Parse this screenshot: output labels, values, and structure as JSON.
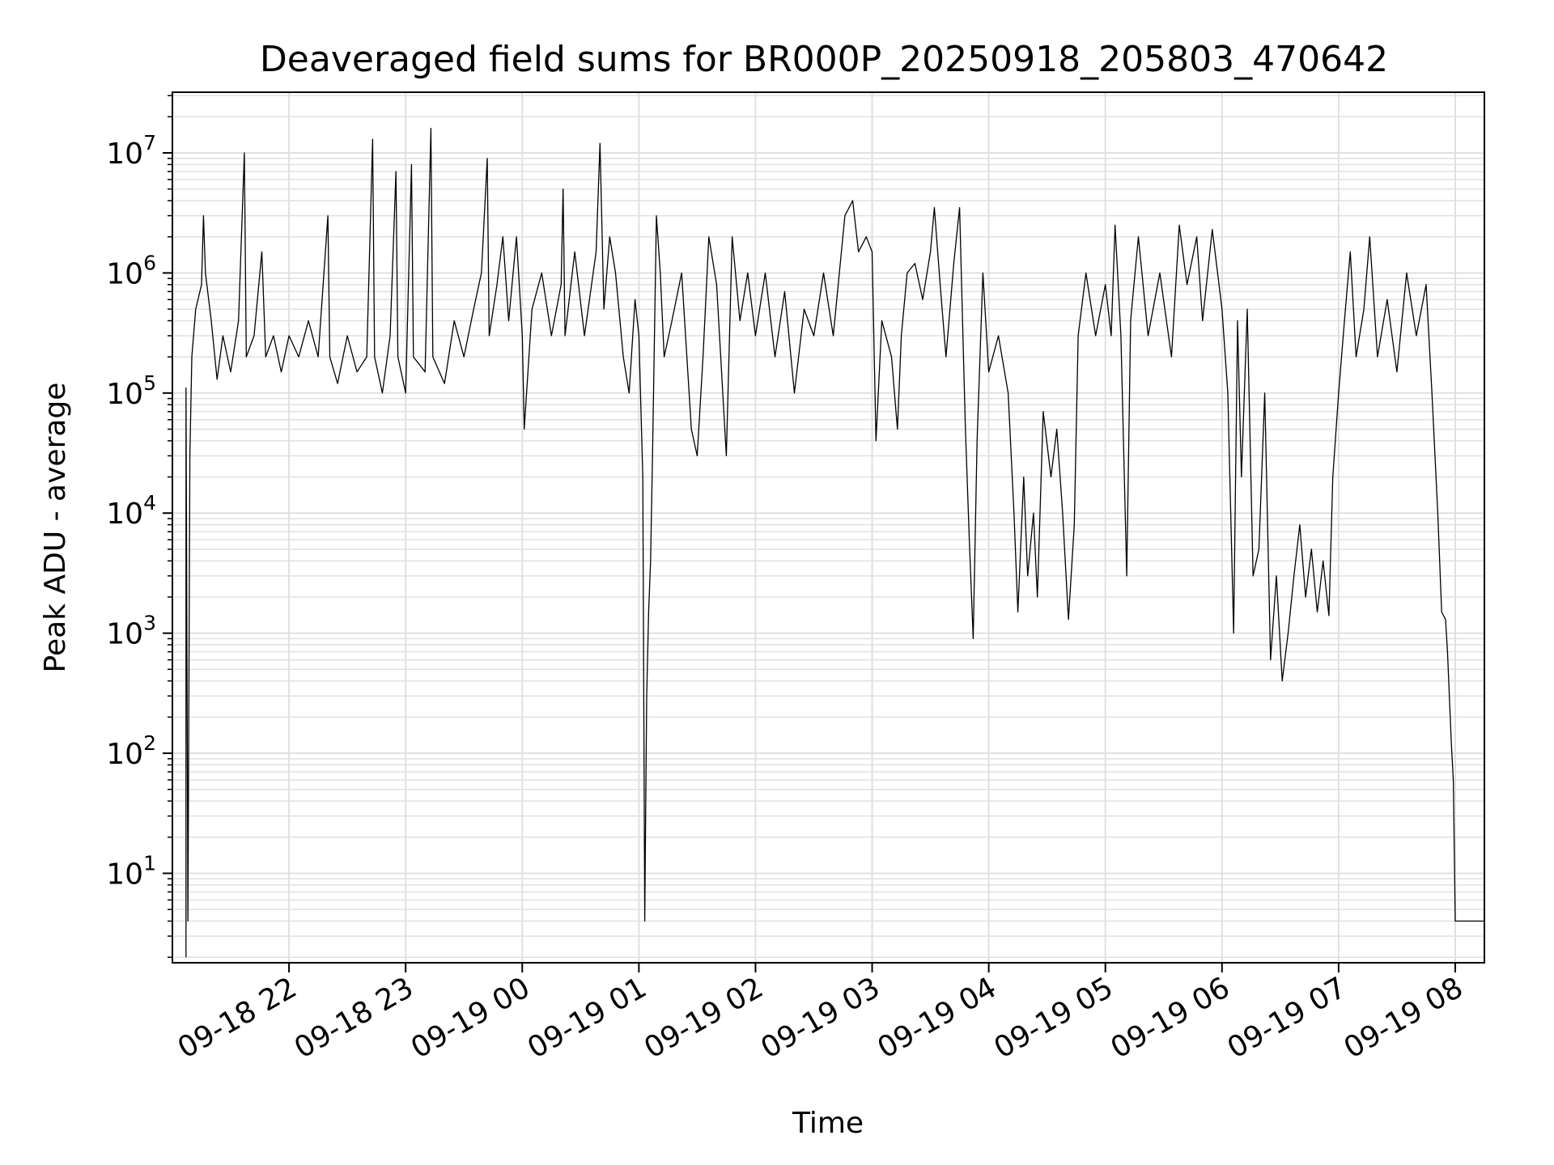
{
  "chart_data": {
    "type": "line",
    "title": "Deaveraged field sums for BR000P_20250918_205803_470642",
    "xlabel": "Time",
    "ylabel": "Peak ADU - average",
    "yscale": "log",
    "ylim": [
      1.8,
      32000000.0
    ],
    "xlim": [
      "2025-09-18 21:00",
      "2025-09-19 08:15"
    ],
    "grid": true,
    "line_color": "#000000",
    "grid_color": "#e0e0e0",
    "x_ticks": [
      {
        "label": "09-18 22",
        "t": "2025-09-18 22:00"
      },
      {
        "label": "09-18 23",
        "t": "2025-09-18 23:00"
      },
      {
        "label": "09-19 00",
        "t": "2025-09-19 00:00"
      },
      {
        "label": "09-19 01",
        "t": "2025-09-19 01:00"
      },
      {
        "label": "09-19 02",
        "t": "2025-09-19 02:00"
      },
      {
        "label": "09-19 03",
        "t": "2025-09-19 03:00"
      },
      {
        "label": "09-19 04",
        "t": "2025-09-19 04:00"
      },
      {
        "label": "09-19 05",
        "t": "2025-09-19 05:00"
      },
      {
        "label": "09-19 06",
        "t": "2025-09-19 06:00"
      },
      {
        "label": "09-19 07",
        "t": "2025-09-19 07:00"
      },
      {
        "label": "09-19 08",
        "t": "2025-09-19 08:00"
      }
    ],
    "y_ticks": [
      {
        "base": "10",
        "exp": "1",
        "value": 10
      },
      {
        "base": "10",
        "exp": "2",
        "value": 100
      },
      {
        "base": "10",
        "exp": "3",
        "value": 1000
      },
      {
        "base": "10",
        "exp": "4",
        "value": 10000
      },
      {
        "base": "10",
        "exp": "5",
        "value": 100000
      },
      {
        "base": "10",
        "exp": "6",
        "value": 1000000
      },
      {
        "base": "10",
        "exp": "7",
        "value": 10000000
      }
    ],
    "series": [
      {
        "points": [
          [
            "2025-09-18 21:07",
            2
          ],
          [
            "2025-09-18 21:07",
            110000.0
          ],
          [
            "2025-09-18 21:08",
            4
          ],
          [
            "2025-09-18 21:09",
            30000.0
          ],
          [
            "2025-09-18 21:10",
            200000.0
          ],
          [
            "2025-09-18 21:12",
            500000.0
          ],
          [
            "2025-09-18 21:15",
            800000.0
          ],
          [
            "2025-09-18 21:16",
            3000000.0
          ],
          [
            "2025-09-18 21:17",
            1000000.0
          ],
          [
            "2025-09-18 21:20",
            400000.0
          ],
          [
            "2025-09-18 21:23",
            130000.0
          ],
          [
            "2025-09-18 21:26",
            300000.0
          ],
          [
            "2025-09-18 21:30",
            150000.0
          ],
          [
            "2025-09-18 21:34",
            400000.0
          ],
          [
            "2025-09-18 21:37",
            10000000.0
          ],
          [
            "2025-09-18 21:38",
            200000.0
          ],
          [
            "2025-09-18 21:42",
            300000.0
          ],
          [
            "2025-09-18 21:46",
            1500000.0
          ],
          [
            "2025-09-18 21:48",
            200000.0
          ],
          [
            "2025-09-18 21:52",
            300000.0
          ],
          [
            "2025-09-18 21:56",
            150000.0
          ],
          [
            "2025-09-18 22:00",
            300000.0
          ],
          [
            "2025-09-18 22:05",
            200000.0
          ],
          [
            "2025-09-18 22:10",
            400000.0
          ],
          [
            "2025-09-18 22:15",
            200000.0
          ],
          [
            "2025-09-18 22:20",
            3000000.0
          ],
          [
            "2025-09-18 22:21",
            200000.0
          ],
          [
            "2025-09-18 22:25",
            120000.0
          ],
          [
            "2025-09-18 22:30",
            300000.0
          ],
          [
            "2025-09-18 22:35",
            150000.0
          ],
          [
            "2025-09-18 22:40",
            200000.0
          ],
          [
            "2025-09-18 22:43",
            13000000.0
          ],
          [
            "2025-09-18 22:44",
            200000.0
          ],
          [
            "2025-09-18 22:48",
            100000.0
          ],
          [
            "2025-09-18 22:52",
            300000.0
          ],
          [
            "2025-09-18 22:55",
            7000000.0
          ],
          [
            "2025-09-18 22:56",
            200000.0
          ],
          [
            "2025-09-18 23:00",
            100000.0
          ],
          [
            "2025-09-18 23:03",
            8000000.0
          ],
          [
            "2025-09-18 23:04",
            200000.0
          ],
          [
            "2025-09-18 23:10",
            150000.0
          ],
          [
            "2025-09-18 23:13",
            16000000.0
          ],
          [
            "2025-09-18 23:14",
            200000.0
          ],
          [
            "2025-09-18 23:20",
            120000.0
          ],
          [
            "2025-09-18 23:25",
            400000.0
          ],
          [
            "2025-09-18 23:30",
            200000.0
          ],
          [
            "2025-09-18 23:35",
            500000.0
          ],
          [
            "2025-09-18 23:39",
            1000000.0
          ],
          [
            "2025-09-18 23:42",
            9000000.0
          ],
          [
            "2025-09-18 23:43",
            300000.0
          ],
          [
            "2025-09-18 23:47",
            800000.0
          ],
          [
            "2025-09-18 23:50",
            2000000.0
          ],
          [
            "2025-09-18 23:53",
            400000.0
          ],
          [
            "2025-09-18 23:57",
            2000000.0
          ],
          [
            "2025-09-19 00:00",
            300000.0
          ],
          [
            "2025-09-19 00:01",
            50000.0
          ],
          [
            "2025-09-19 00:05",
            500000.0
          ],
          [
            "2025-09-19 00:10",
            1000000.0
          ],
          [
            "2025-09-19 00:15",
            300000.0
          ],
          [
            "2025-09-19 00:20",
            800000.0
          ],
          [
            "2025-09-19 00:21",
            5000000.0
          ],
          [
            "2025-09-19 00:22",
            300000.0
          ],
          [
            "2025-09-19 00:27",
            1500000.0
          ],
          [
            "2025-09-19 00:32",
            300000.0
          ],
          [
            "2025-09-19 00:38",
            1500000.0
          ],
          [
            "2025-09-19 00:40",
            12000000.0
          ],
          [
            "2025-09-19 00:42",
            500000.0
          ],
          [
            "2025-09-19 00:45",
            2000000.0
          ],
          [
            "2025-09-19 00:48",
            1000000.0
          ],
          [
            "2025-09-19 00:52",
            200000.0
          ],
          [
            "2025-09-19 00:55",
            100000.0
          ],
          [
            "2025-09-19 00:58",
            600000.0
          ],
          [
            "2025-09-19 01:00",
            300000.0
          ],
          [
            "2025-09-19 01:02",
            20000.0
          ],
          [
            "2025-09-19 01:03",
            4
          ],
          [
            "2025-09-19 01:04",
            300
          ],
          [
            "2025-09-19 01:05",
            1500
          ],
          [
            "2025-09-19 01:06",
            4000
          ],
          [
            "2025-09-19 01:07",
            30000.0
          ],
          [
            "2025-09-19 01:09",
            3000000.0
          ],
          [
            "2025-09-19 01:11",
            1000000.0
          ],
          [
            "2025-09-19 01:13",
            200000.0
          ],
          [
            "2025-09-19 01:17",
            400000.0
          ],
          [
            "2025-09-19 01:22",
            1000000.0
          ],
          [
            "2025-09-19 01:27",
            50000.0
          ],
          [
            "2025-09-19 01:30",
            30000.0
          ],
          [
            "2025-09-19 01:33",
            200000.0
          ],
          [
            "2025-09-19 01:36",
            2000000.0
          ],
          [
            "2025-09-19 01:40",
            800000.0
          ],
          [
            "2025-09-19 01:45",
            30000.0
          ],
          [
            "2025-09-19 01:48",
            2000000.0
          ],
          [
            "2025-09-19 01:52",
            400000.0
          ],
          [
            "2025-09-19 01:56",
            1000000.0
          ],
          [
            "2025-09-19 02:00",
            300000.0
          ],
          [
            "2025-09-19 02:05",
            1000000.0
          ],
          [
            "2025-09-19 02:10",
            200000.0
          ],
          [
            "2025-09-19 02:15",
            700000.0
          ],
          [
            "2025-09-19 02:20",
            100000.0
          ],
          [
            "2025-09-19 02:25",
            500000.0
          ],
          [
            "2025-09-19 02:30",
            300000.0
          ],
          [
            "2025-09-19 02:35",
            1000000.0
          ],
          [
            "2025-09-19 02:40",
            300000.0
          ],
          [
            "2025-09-19 02:46",
            3000000.0
          ],
          [
            "2025-09-19 02:50",
            4000000.0
          ],
          [
            "2025-09-19 02:53",
            1500000.0
          ],
          [
            "2025-09-19 02:57",
            2000000.0
          ],
          [
            "2025-09-19 03:00",
            1500000.0
          ],
          [
            "2025-09-19 03:02",
            40000.0
          ],
          [
            "2025-09-19 03:05",
            400000.0
          ],
          [
            "2025-09-19 03:10",
            200000.0
          ],
          [
            "2025-09-19 03:13",
            50000.0
          ],
          [
            "2025-09-19 03:15",
            300000.0
          ],
          [
            "2025-09-19 03:18",
            1000000.0
          ],
          [
            "2025-09-19 03:22",
            1200000.0
          ],
          [
            "2025-09-19 03:26",
            600000.0
          ],
          [
            "2025-09-19 03:30",
            1500000.0
          ],
          [
            "2025-09-19 03:32",
            3500000.0
          ],
          [
            "2025-09-19 03:35",
            800000.0
          ],
          [
            "2025-09-19 03:38",
            200000.0
          ],
          [
            "2025-09-19 03:42",
            1200000.0
          ],
          [
            "2025-09-19 03:45",
            3500000.0
          ],
          [
            "2025-09-19 03:47",
            200000.0
          ],
          [
            "2025-09-19 03:48",
            50000.0
          ],
          [
            "2025-09-19 03:50",
            6000
          ],
          [
            "2025-09-19 03:52",
            900
          ],
          [
            "2025-09-19 03:54",
            40000.0
          ],
          [
            "2025-09-19 03:57",
            1000000.0
          ],
          [
            "2025-09-19 04:00",
            150000.0
          ],
          [
            "2025-09-19 04:05",
            300000.0
          ],
          [
            "2025-09-19 04:10",
            100000.0
          ],
          [
            "2025-09-19 04:13",
            10000.0
          ],
          [
            "2025-09-19 04:15",
            1500
          ],
          [
            "2025-09-19 04:18",
            20000.0
          ],
          [
            "2025-09-19 04:20",
            3000
          ],
          [
            "2025-09-19 04:23",
            10000.0
          ],
          [
            "2025-09-19 04:25",
            2000
          ],
          [
            "2025-09-19 04:28",
            70000.0
          ],
          [
            "2025-09-19 04:32",
            20000.0
          ],
          [
            "2025-09-19 04:35",
            50000.0
          ],
          [
            "2025-09-19 04:38",
            10000.0
          ],
          [
            "2025-09-19 04:41",
            1300
          ],
          [
            "2025-09-19 04:44",
            8000
          ],
          [
            "2025-09-19 04:46",
            300000.0
          ],
          [
            "2025-09-19 04:50",
            1000000.0
          ],
          [
            "2025-09-19 04:55",
            300000.0
          ],
          [
            "2025-09-19 05:00",
            800000.0
          ],
          [
            "2025-09-19 05:03",
            300000.0
          ],
          [
            "2025-09-19 05:05",
            2500000.0
          ],
          [
            "2025-09-19 05:08",
            300000.0
          ],
          [
            "2025-09-19 05:11",
            3000
          ],
          [
            "2025-09-19 05:13",
            400000.0
          ],
          [
            "2025-09-19 05:17",
            2000000.0
          ],
          [
            "2025-09-19 05:22",
            300000.0
          ],
          [
            "2025-09-19 05:28",
            1000000.0
          ],
          [
            "2025-09-19 05:34",
            200000.0
          ],
          [
            "2025-09-19 05:38",
            2500000.0
          ],
          [
            "2025-09-19 05:42",
            800000.0
          ],
          [
            "2025-09-19 05:47",
            2000000.0
          ],
          [
            "2025-09-19 05:50",
            400000.0
          ],
          [
            "2025-09-19 05:55",
            2300000.0
          ],
          [
            "2025-09-19 06:00",
            500000.0
          ],
          [
            "2025-09-19 06:03",
            100000.0
          ],
          [
            "2025-09-19 06:06",
            1000
          ],
          [
            "2025-09-19 06:08",
            400000.0
          ],
          [
            "2025-09-19 06:10",
            20000.0
          ],
          [
            "2025-09-19 06:13",
            500000.0
          ],
          [
            "2025-09-19 06:16",
            3000
          ],
          [
            "2025-09-19 06:19",
            5000.0
          ],
          [
            "2025-09-19 06:22",
            100000.0
          ],
          [
            "2025-09-19 06:25",
            600
          ],
          [
            "2025-09-19 06:28",
            3000
          ],
          [
            "2025-09-19 06:31",
            400
          ],
          [
            "2025-09-19 06:34",
            1000
          ],
          [
            "2025-09-19 06:37",
            3000
          ],
          [
            "2025-09-19 06:40",
            8000
          ],
          [
            "2025-09-19 06:43",
            2000
          ],
          [
            "2025-09-19 06:46",
            5000
          ],
          [
            "2025-09-19 06:49",
            1500
          ],
          [
            "2025-09-19 06:52",
            4000
          ],
          [
            "2025-09-19 06:55",
            1400
          ],
          [
            "2025-09-19 06:57",
            20000.0
          ],
          [
            "2025-09-19 07:00",
            100000.0
          ],
          [
            "2025-09-19 07:03",
            400000.0
          ],
          [
            "2025-09-19 07:06",
            1500000.0
          ],
          [
            "2025-09-19 07:09",
            200000.0
          ],
          [
            "2025-09-19 07:13",
            500000.0
          ],
          [
            "2025-09-19 07:16",
            2000000.0
          ],
          [
            "2025-09-19 07:20",
            200000.0
          ],
          [
            "2025-09-19 07:25",
            600000.0
          ],
          [
            "2025-09-19 07:30",
            150000.0
          ],
          [
            "2025-09-19 07:35",
            1000000.0
          ],
          [
            "2025-09-19 07:40",
            300000.0
          ],
          [
            "2025-09-19 07:45",
            800000.0
          ],
          [
            "2025-09-19 07:48",
            100000.0
          ],
          [
            "2025-09-19 07:51",
            10000.0
          ],
          [
            "2025-09-19 07:53",
            1500
          ],
          [
            "2025-09-19 07:55",
            1300
          ],
          [
            "2025-09-19 07:56",
            700
          ],
          [
            "2025-09-19 07:58",
            120
          ],
          [
            "2025-09-19 07:59",
            60
          ],
          [
            "2025-09-19 08:00",
            4
          ],
          [
            "2025-09-19 08:15",
            4
          ]
        ]
      }
    ]
  }
}
